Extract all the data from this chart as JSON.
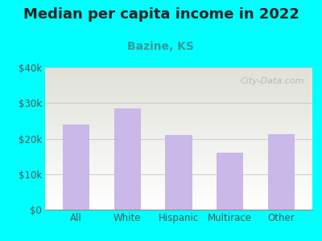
{
  "title": "Median per capita income in 2022",
  "subtitle": "Bazine, KS",
  "categories": [
    "All",
    "White",
    "Hispanic",
    "Multirace",
    "Other"
  ],
  "values": [
    24000,
    28500,
    21000,
    16000,
    21200
  ],
  "bar_color": "#c9b8e8",
  "background_outer": "#00ffff",
  "title_fontsize": 13,
  "subtitle_fontsize": 10,
  "tick_label_fontsize": 8.5,
  "ytick_labels": [
    "$0",
    "$10k",
    "$20k",
    "$30k",
    "$40k"
  ],
  "ytick_values": [
    0,
    10000,
    20000,
    30000,
    40000
  ],
  "ylim": [
    0,
    40000
  ],
  "watermark": "City-Data.com",
  "title_color": "#222222",
  "subtitle_color": "#3a9a9a",
  "axis_label_color": "#555555",
  "grid_color": "#cccccc"
}
